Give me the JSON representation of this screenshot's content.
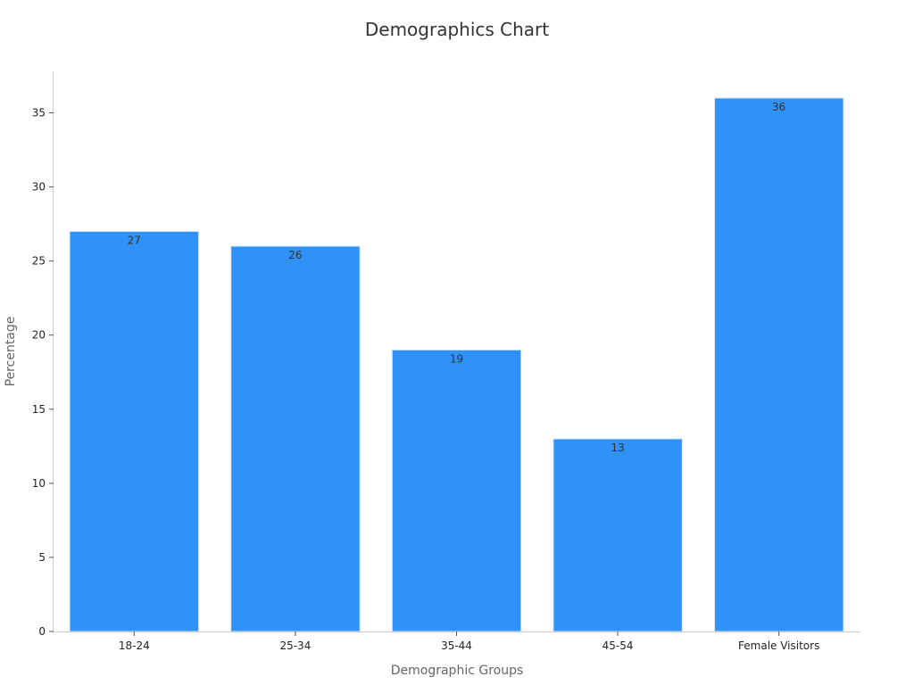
{
  "chart_data": {
    "type": "bar",
    "title": "Demographics Chart",
    "xlabel": "Demographic Groups",
    "ylabel": "Percentage",
    "categories": [
      "18-24",
      "25-34",
      "35-44",
      "45-54",
      "Female Visitors"
    ],
    "values": [
      27,
      26,
      19,
      13,
      36
    ],
    "data_labels": [
      "27",
      "26",
      "19",
      "13",
      "36"
    ],
    "ylim": [
      0,
      37.8
    ],
    "yticks": [
      0,
      5,
      10,
      15,
      20,
      25,
      30,
      35
    ],
    "ytick_labels": [
      "0",
      "5",
      "10",
      "15",
      "20",
      "25",
      "30",
      "35"
    ],
    "grid": false,
    "colors": {
      "bar": "#2F92F8",
      "bar_edge": "#DCE9FA",
      "axis": "#CCCCCC",
      "tick": "#555555"
    }
  }
}
